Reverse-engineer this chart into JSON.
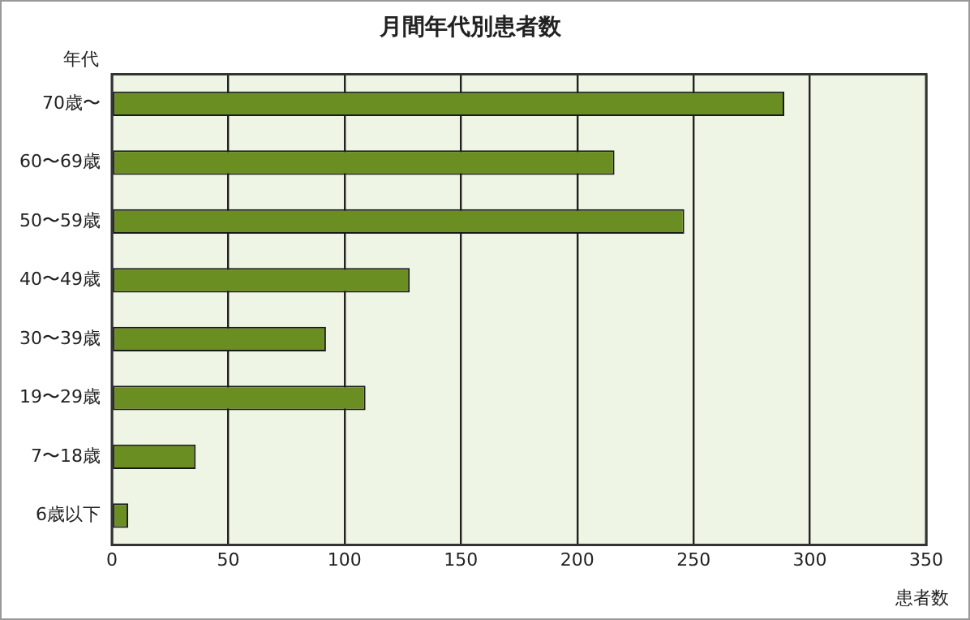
{
  "chart_data": {
    "type": "bar",
    "orientation": "horizontal",
    "title": "月間年代別患者数",
    "xlabel": "患者数",
    "ylabel": "年代",
    "categories": [
      "70歳〜",
      "60〜69歳",
      "50〜59歳",
      "40〜49歳",
      "30〜39歳",
      "19〜29歳",
      "7〜18歳",
      "6歳以下"
    ],
    "values": [
      289,
      216,
      246,
      128,
      92,
      109,
      36,
      7
    ],
    "color": "#6b8e23",
    "xlim": [
      0,
      350
    ],
    "xticks": [
      0,
      50,
      100,
      150,
      200,
      250,
      300,
      350
    ],
    "grid": "x",
    "legend": false
  }
}
